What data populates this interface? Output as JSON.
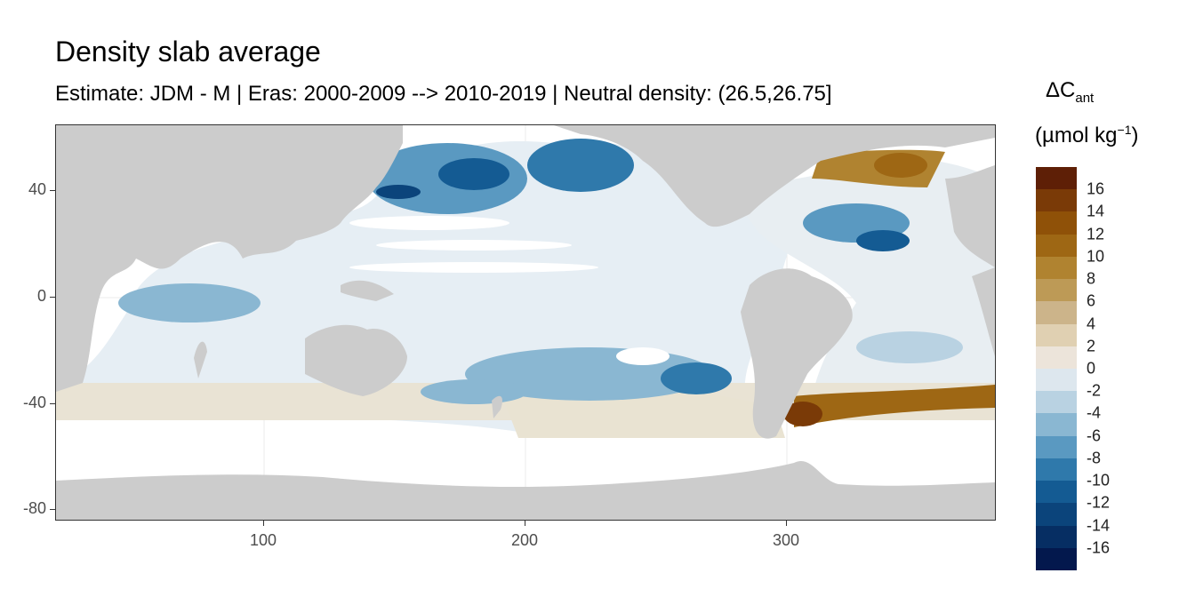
{
  "title": "Density slab average",
  "subtitle": "Estimate: JDM - M | Eras: 2000-2009 --> 2010-2019 | Neutral density: (26.5,26.75]",
  "legend": {
    "title_main": "ΔC",
    "title_sub": "ant",
    "unit_prefix": "(µmol kg",
    "unit_sup": "−1",
    "unit_suffix": ")",
    "colors": [
      "#5e1f06",
      "#7a3a07",
      "#8f5108",
      "#9e6714",
      "#b08330",
      "#bd9a56",
      "#ccb48a",
      "#e0d0b2",
      "#ece4da",
      "#dde7ee",
      "#b9d2e2",
      "#8ab7d2",
      "#5a99c1",
      "#2f79ab",
      "#145b93",
      "#0b447b",
      "#062e63",
      "#03184d"
    ],
    "labels": [
      "16",
      "14",
      "12",
      "10",
      "8",
      "6",
      "4",
      "2",
      "0",
      "-2",
      "-4",
      "-6",
      "-8",
      "-10",
      "-12",
      "-14",
      "-16"
    ]
  },
  "map": {
    "x_ticks": [
      "100",
      "200",
      "300"
    ],
    "y_ticks": [
      "40",
      "0",
      "-40",
      "-80"
    ],
    "land_color": "#cccccc",
    "ocean_background": "#ffffff"
  },
  "chart_data": {
    "type": "heatmap",
    "title": "Density slab average",
    "subtitle": "Estimate: JDM - M | Eras: 2000-2009 --> 2010-2019 | Neutral density: (26.5,26.75]",
    "xlabel": "",
    "ylabel": "",
    "xlim": [
      20,
      380
    ],
    "ylim": [
      -85,
      65
    ],
    "x_ticks": [
      100,
      200,
      300
    ],
    "y_ticks": [
      40,
      0,
      -40,
      -80
    ],
    "grid": true,
    "legend_position": "right",
    "color_scale": {
      "variable": "ΔCant",
      "unit": "µmol kg−1",
      "breaks": [
        16,
        14,
        12,
        10,
        8,
        6,
        4,
        2,
        0,
        -2,
        -4,
        -6,
        -8,
        -10,
        -12,
        -14,
        -16
      ]
    }
  }
}
